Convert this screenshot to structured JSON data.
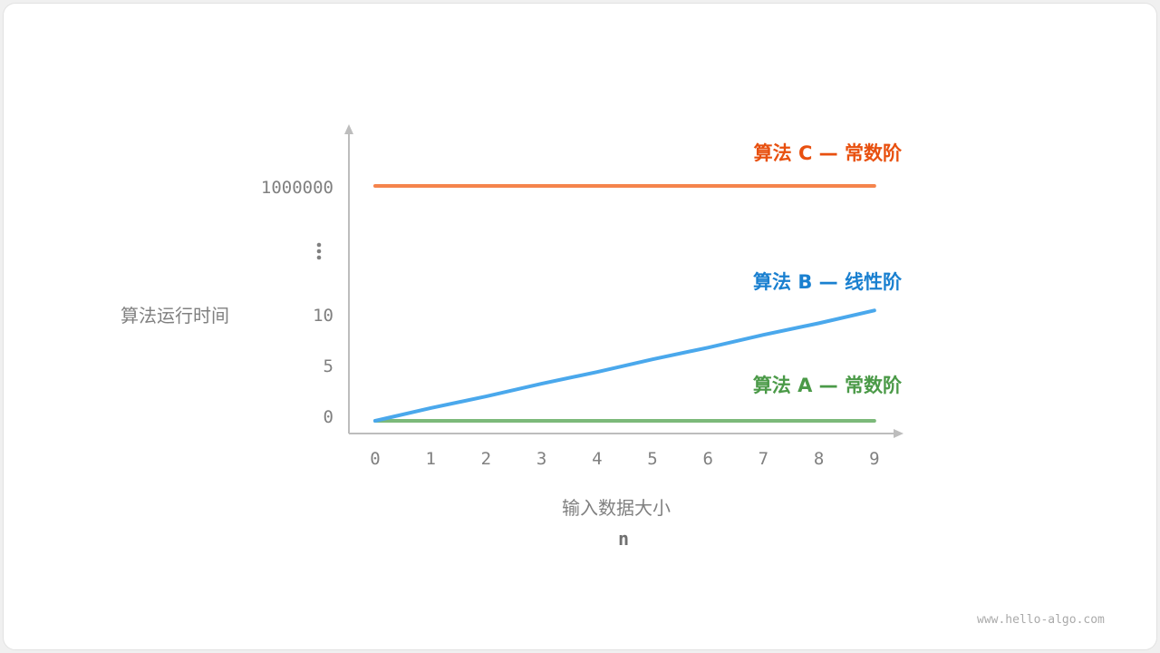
{
  "chart_data": {
    "type": "line",
    "xlabel": "输入数据大小",
    "xsymbol": "n",
    "ylabel": "算法运行时间",
    "x": [
      0,
      1,
      2,
      3,
      4,
      5,
      6,
      7,
      8,
      9
    ],
    "yticks": [
      "0",
      "5",
      "10",
      "⋮",
      "1000000"
    ],
    "y_axis_broken": true,
    "grid": false,
    "series": [
      {
        "name": "算法 A — 常数阶",
        "color": "#7cb97a",
        "label_color": "#4b9a48",
        "values": [
          1,
          1,
          1,
          1,
          1,
          1,
          1,
          1,
          1,
          1
        ]
      },
      {
        "name": "算法 B — 线性阶",
        "color": "#4aa8ec",
        "label_color": "#1a80d0",
        "values": [
          0,
          1.2,
          2.3,
          3.5,
          4.6,
          5.8,
          6.9,
          8.1,
          9.2,
          10.4
        ]
      },
      {
        "name": "算法 C — 常数阶",
        "color": "#f5844c",
        "label_color": "#e8500f",
        "values": [
          1000000,
          1000000,
          1000000,
          1000000,
          1000000,
          1000000,
          1000000,
          1000000,
          1000000,
          1000000
        ]
      }
    ]
  },
  "watermark": "www.hello-algo.com"
}
